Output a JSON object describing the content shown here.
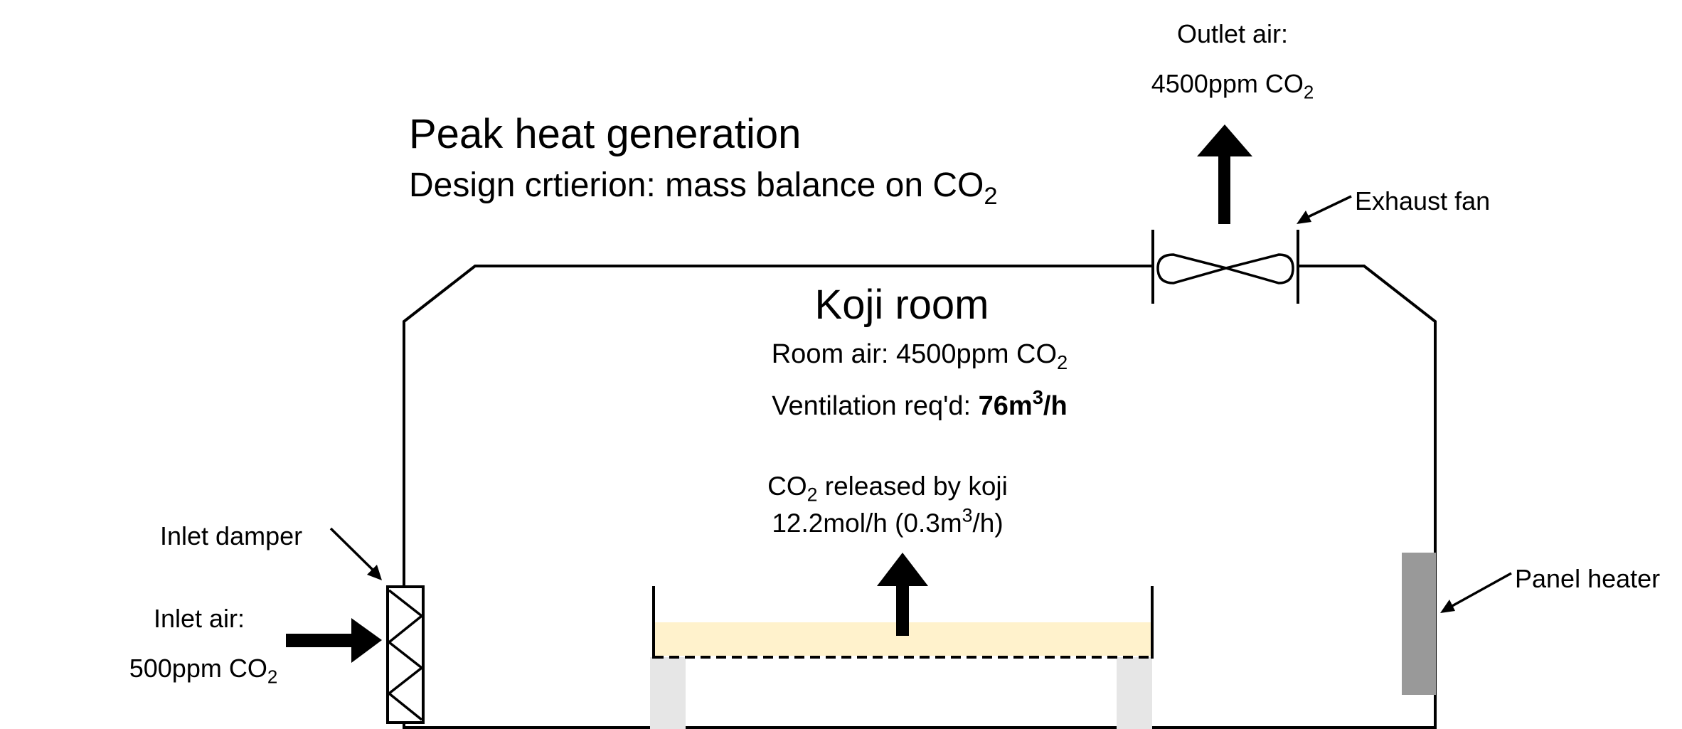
{
  "outlet": {
    "label": "Outlet air:",
    "value_prefix": "4500ppm CO",
    "value_sub": "2"
  },
  "exhaust_fan": {
    "label": "Exhaust fan"
  },
  "title": {
    "heading": "Peak heat generation",
    "subheading_prefix": "Design crtierion: mass balance on CO",
    "subheading_sub": "2"
  },
  "room": {
    "name": "Koji room",
    "room_air_prefix": "Room air: 4500ppm CO",
    "room_air_sub": "2",
    "ventilation_prefix": "Ventilation req'd: ",
    "ventilation_value": "76m",
    "ventilation_sup": "3",
    "ventilation_unit": "/h"
  },
  "koji_release": {
    "line1_prefix": "CO",
    "line1_sub": "2",
    "line1_suffix": " released by koji",
    "line2_prefix": "12.2mol/h (0.3m",
    "line2_sup": "3",
    "line2_suffix": "/h)"
  },
  "inlet_damper": {
    "label": "Inlet damper"
  },
  "inlet_air": {
    "label": "Inlet air:",
    "value_prefix": "500ppm CO",
    "value_sub": "2"
  },
  "panel_heater": {
    "label": "Panel heater"
  },
  "colors": {
    "koji_bed": "#fff2cc",
    "bed_legs": "#e6e6e6",
    "panel_heater": "#999999",
    "stroke": "#000000"
  }
}
